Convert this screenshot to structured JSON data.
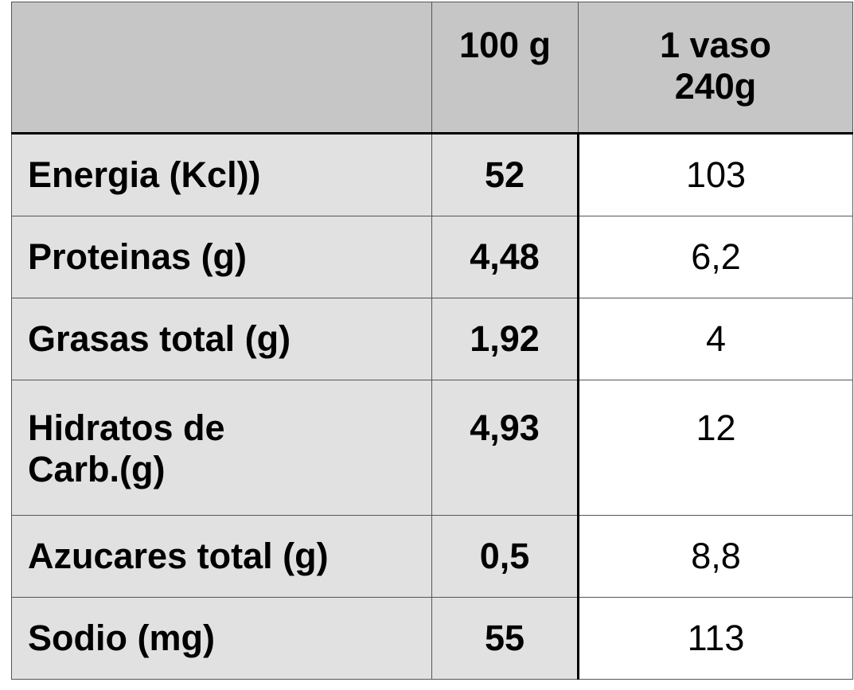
{
  "table": {
    "header": {
      "col_label": "",
      "col_100g": "100 g",
      "col_vaso_line1": "1 vaso",
      "col_vaso_line2": "240g"
    },
    "rows": [
      {
        "label": "Energia (Kcl))",
        "per_100g": "52",
        "per_vaso": "103"
      },
      {
        "label": "Proteinas (g)",
        "per_100g": "4,48",
        "per_vaso": "6,2"
      },
      {
        "label": "Grasas total (g)",
        "per_100g": "1,92",
        "per_vaso": "4"
      },
      {
        "label_line1": "Hidratos de",
        "label_line2": "Carb.(g)",
        "per_100g": "4,93",
        "per_vaso": "12"
      },
      {
        "label": "Azucares total (g)",
        "per_100g": "0,5",
        "per_vaso": "8,8"
      },
      {
        "label": "Sodio (mg)",
        "per_100g": "55",
        "per_vaso": "113"
      }
    ]
  },
  "colors": {
    "header_bg": "#c6c6c6",
    "shaded_cell_bg": "#e1e1e1",
    "plain_cell_bg": "#ffffff",
    "border": "#555555",
    "text": "#000000"
  }
}
